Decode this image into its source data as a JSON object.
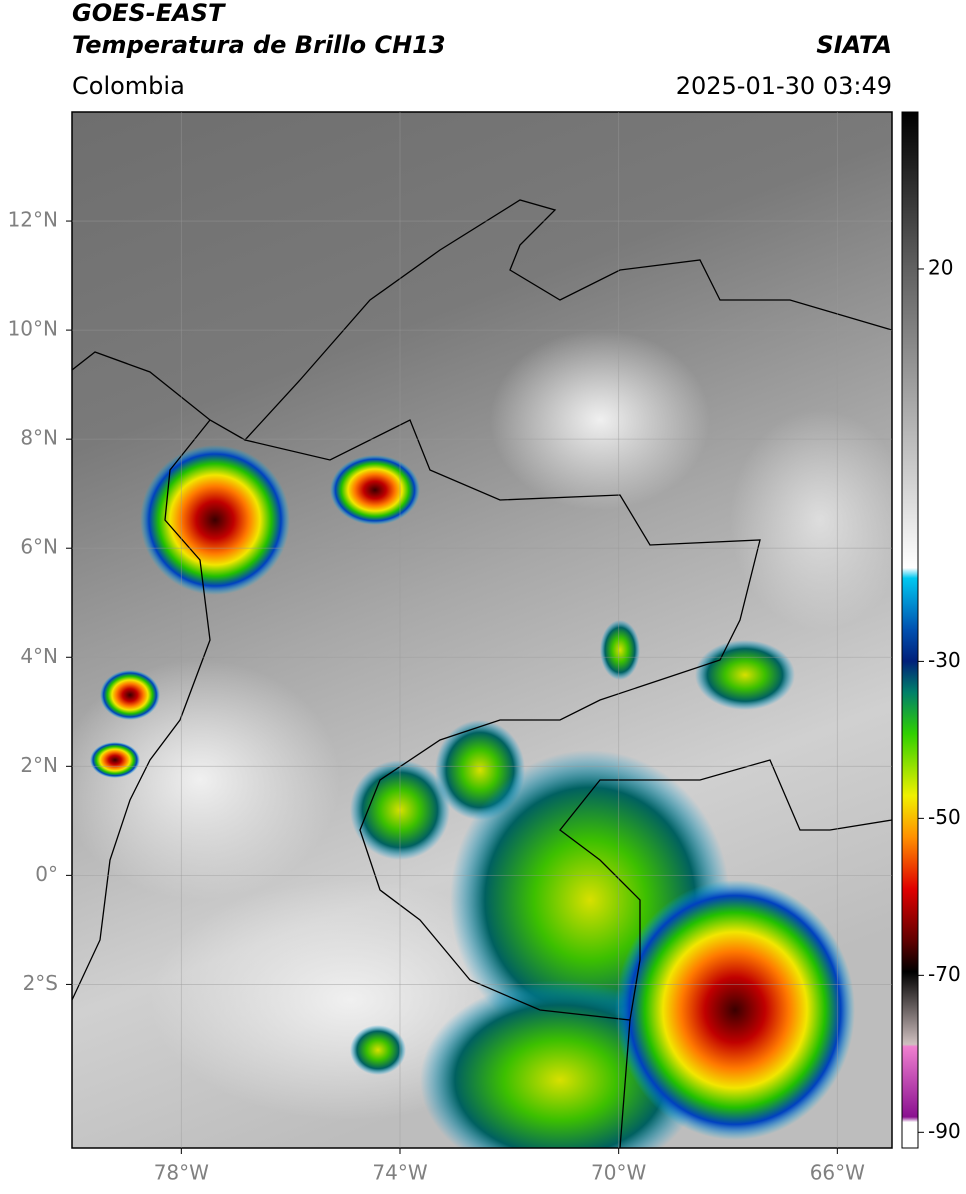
{
  "header": {
    "title": "GOES-EAST",
    "subtitle": "Temperatura de Brillo CH13",
    "source": "SIATA",
    "region": "Colombia",
    "timestamp": "2025-01-30 03:49"
  },
  "map": {
    "xlim": [
      -80,
      -65
    ],
    "ylim": [
      -5,
      14
    ],
    "xticks": [
      {
        "value": -78,
        "label": "78°W"
      },
      {
        "value": -74,
        "label": "74°W"
      },
      {
        "value": -70,
        "label": "70°W"
      },
      {
        "value": -66,
        "label": "66°W"
      }
    ],
    "yticks": [
      {
        "value": 12,
        "label": "12°N"
      },
      {
        "value": 10,
        "label": "10°N"
      },
      {
        "value": 8,
        "label": "8°N"
      },
      {
        "value": 6,
        "label": "6°N"
      },
      {
        "value": 4,
        "label": "4°N"
      },
      {
        "value": 2,
        "label": "2°N"
      },
      {
        "value": 0,
        "label": "0°"
      },
      {
        "value": -2,
        "label": "2°S"
      }
    ]
  },
  "colorbar": {
    "lim": [
      -92,
      40
    ],
    "ticks": [
      20,
      -30,
      -50,
      -70,
      -90
    ]
  }
}
